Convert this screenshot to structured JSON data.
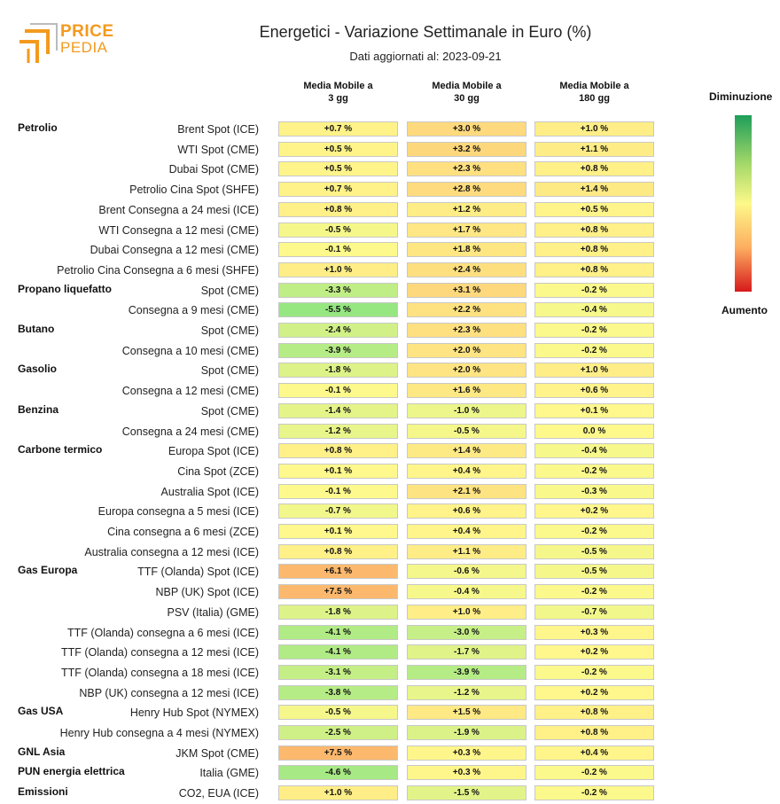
{
  "logo": {
    "line1": "PRICE",
    "line2": "PEDIA"
  },
  "title": "Energetici - Variazione Settimanale in Euro (%)",
  "subtitle": "Dati aggiornati al: 2023-09-21",
  "columns": [
    {
      "line1": "Media Mobile a",
      "line2": "3 gg"
    },
    {
      "line1": "Media Mobile a",
      "line2": "30 gg"
    },
    {
      "line1": "Media Mobile a",
      "line2": "180 gg"
    }
  ],
  "legend": {
    "top": "Diminuzione",
    "bottom": "Aumento"
  },
  "chart_data": {
    "type": "heatmap",
    "columns": [
      "Media Mobile a 3 gg",
      "Media Mobile a 30 gg",
      "Media Mobile a 180 gg"
    ],
    "rows": [
      {
        "group": "Petrolio",
        "label": "Brent Spot (ICE)",
        "values": [
          "+0.7 %",
          "+3.0 %",
          "+1.0 %"
        ],
        "nums": [
          0.7,
          3.0,
          1.0
        ]
      },
      {
        "group": "",
        "label": "WTI Spot (CME)",
        "values": [
          "+0.5 %",
          "+3.2 %",
          "+1.1 %"
        ],
        "nums": [
          0.5,
          3.2,
          1.1
        ]
      },
      {
        "group": "",
        "label": "Dubai Spot (CME)",
        "values": [
          "+0.5 %",
          "+2.3 %",
          "+0.8 %"
        ],
        "nums": [
          0.5,
          2.3,
          0.8
        ]
      },
      {
        "group": "",
        "label": "Petrolio Cina Spot (SHFE)",
        "values": [
          "+0.7 %",
          "+2.8 %",
          "+1.4 %"
        ],
        "nums": [
          0.7,
          2.8,
          1.4
        ]
      },
      {
        "group": "",
        "label": "Brent Consegna a 24 mesi (ICE)",
        "values": [
          "+0.8 %",
          "+1.2 %",
          "+0.5 %"
        ],
        "nums": [
          0.8,
          1.2,
          0.5
        ]
      },
      {
        "group": "",
        "label": "WTI Consegna a 12 mesi (CME)",
        "values": [
          "-0.5 %",
          "+1.7 %",
          "+0.8 %"
        ],
        "nums": [
          -0.5,
          1.7,
          0.8
        ]
      },
      {
        "group": "",
        "label": "Dubai Consegna a 12 mesi (CME)",
        "values": [
          "-0.1 %",
          "+1.8 %",
          "+0.8 %"
        ],
        "nums": [
          -0.1,
          1.8,
          0.8
        ]
      },
      {
        "group": "",
        "label": "Petrolio Cina Consegna a 6 mesi (SHFE)",
        "values": [
          "+1.0 %",
          "+2.4 %",
          "+0.8 %"
        ],
        "nums": [
          1.0,
          2.4,
          0.8
        ]
      },
      {
        "group": "Propano liquefatto",
        "label": "Spot (CME)",
        "values": [
          "-3.3 %",
          "+3.1 %",
          "-0.2 %"
        ],
        "nums": [
          -3.3,
          3.1,
          -0.2
        ]
      },
      {
        "group": "",
        "label": "Consegna a 9 mesi (CME)",
        "values": [
          "-5.5 %",
          "+2.2 %",
          "-0.4 %"
        ],
        "nums": [
          -5.5,
          2.2,
          -0.4
        ]
      },
      {
        "group": "Butano",
        "label": "Spot (CME)",
        "values": [
          "-2.4 %",
          "+2.3 %",
          "-0.2 %"
        ],
        "nums": [
          -2.4,
          2.3,
          -0.2
        ]
      },
      {
        "group": "",
        "label": "Consegna a 10 mesi (CME)",
        "values": [
          "-3.9 %",
          "+2.0 %",
          "-0.2 %"
        ],
        "nums": [
          -3.9,
          2.0,
          -0.2
        ]
      },
      {
        "group": "Gasolio",
        "label": "Spot (CME)",
        "values": [
          "-1.8 %",
          "+2.0 %",
          "+1.0 %"
        ],
        "nums": [
          -1.8,
          2.0,
          1.0
        ]
      },
      {
        "group": "",
        "label": "Consegna a 12 mesi (CME)",
        "values": [
          "-0.1 %",
          "+1.6 %",
          "+0.6 %"
        ],
        "nums": [
          -0.1,
          1.6,
          0.6
        ]
      },
      {
        "group": "Benzina",
        "label": "Spot (CME)",
        "values": [
          "-1.4 %",
          "-1.0 %",
          "+0.1 %"
        ],
        "nums": [
          -1.4,
          -1.0,
          0.1
        ]
      },
      {
        "group": "",
        "label": "Consegna a 24 mesi (CME)",
        "values": [
          "-1.2 %",
          "-0.5 %",
          "0.0 %"
        ],
        "nums": [
          -1.2,
          -0.5,
          0.0
        ]
      },
      {
        "group": "Carbone termico",
        "label": "Europa Spot (ICE)",
        "values": [
          "+0.8 %",
          "+1.4 %",
          "-0.4 %"
        ],
        "nums": [
          0.8,
          1.4,
          -0.4
        ]
      },
      {
        "group": "",
        "label": "Cina Spot (ZCE)",
        "values": [
          "+0.1 %",
          "+0.4 %",
          "-0.2 %"
        ],
        "nums": [
          0.1,
          0.4,
          -0.2
        ]
      },
      {
        "group": "",
        "label": "Australia Spot (ICE)",
        "values": [
          "-0.1 %",
          "+2.1 %",
          "-0.3 %"
        ],
        "nums": [
          -0.1,
          2.1,
          -0.3
        ]
      },
      {
        "group": "",
        "label": "Europa consegna a 5 mesi (ICE)",
        "values": [
          "-0.7 %",
          "+0.6 %",
          "+0.2 %"
        ],
        "nums": [
          -0.7,
          0.6,
          0.2
        ]
      },
      {
        "group": "",
        "label": "Cina consegna a 6 mesi (ZCE)",
        "values": [
          "+0.1 %",
          "+0.4 %",
          "-0.2 %"
        ],
        "nums": [
          0.1,
          0.4,
          -0.2
        ]
      },
      {
        "group": "",
        "label": "Australia consegna a 12 mesi (ICE)",
        "values": [
          "+0.8 %",
          "+1.1 %",
          "-0.5 %"
        ],
        "nums": [
          0.8,
          1.1,
          -0.5
        ]
      },
      {
        "group": "Gas Europa",
        "label": "TTF (Olanda) Spot (ICE)",
        "values": [
          "+6.1 %",
          "-0.6 %",
          "-0.5 %"
        ],
        "nums": [
          6.1,
          -0.6,
          -0.5
        ]
      },
      {
        "group": "",
        "label": "NBP (UK) Spot (ICE)",
        "values": [
          "+7.5 %",
          "-0.4 %",
          "-0.2 %"
        ],
        "nums": [
          7.5,
          -0.4,
          -0.2
        ]
      },
      {
        "group": "",
        "label": "PSV (Italia) (GME)",
        "values": [
          "-1.8 %",
          "+1.0 %",
          "-0.7 %"
        ],
        "nums": [
          -1.8,
          1.0,
          -0.7
        ]
      },
      {
        "group": "",
        "label": "TTF (Olanda) consegna a 6 mesi (ICE)",
        "values": [
          "-4.1 %",
          "-3.0 %",
          "+0.3 %"
        ],
        "nums": [
          -4.1,
          -3.0,
          0.3
        ]
      },
      {
        "group": "",
        "label": "TTF (Olanda) consegna a 12 mesi (ICE)",
        "values": [
          "-4.1 %",
          "-1.7 %",
          "+0.2 %"
        ],
        "nums": [
          -4.1,
          -1.7,
          0.2
        ]
      },
      {
        "group": "",
        "label": "TTF (Olanda) consegna a 18 mesi (ICE)",
        "values": [
          "-3.1 %",
          "-3.9 %",
          "-0.2 %"
        ],
        "nums": [
          -3.1,
          -3.9,
          -0.2
        ]
      },
      {
        "group": "",
        "label": "NBP (UK) consegna a 12 mesi (ICE)",
        "values": [
          "-3.8 %",
          "-1.2 %",
          "+0.2 %"
        ],
        "nums": [
          -3.8,
          -1.2,
          0.2
        ]
      },
      {
        "group": "Gas USA",
        "label": "Henry Hub Spot (NYMEX)",
        "values": [
          "-0.5 %",
          "+1.5 %",
          "+0.8 %"
        ],
        "nums": [
          -0.5,
          1.5,
          0.8
        ]
      },
      {
        "group": "",
        "label": "Henry Hub consegna a 4 mesi (NYMEX)",
        "values": [
          "-2.5 %",
          "-1.9 %",
          "+0.8 %"
        ],
        "nums": [
          -2.5,
          -1.9,
          0.8
        ]
      },
      {
        "group": "GNL Asia",
        "label": "JKM Spot (CME)",
        "values": [
          "+7.5 %",
          "+0.3 %",
          "+0.4 %"
        ],
        "nums": [
          7.5,
          0.3,
          0.4
        ]
      },
      {
        "group": "PUN energia elettrica",
        "label": "Italia (GME)",
        "values": [
          "-4.6 %",
          "+0.3 %",
          "-0.2 %"
        ],
        "nums": [
          -4.6,
          0.3,
          -0.2
        ]
      },
      {
        "group": "Emissioni",
        "label": "CO2, EUA (ICE)",
        "values": [
          "+1.0 %",
          "-1.5 %",
          "-0.2 %"
        ],
        "nums": [
          1.0,
          -1.5,
          -0.2
        ]
      }
    ]
  }
}
